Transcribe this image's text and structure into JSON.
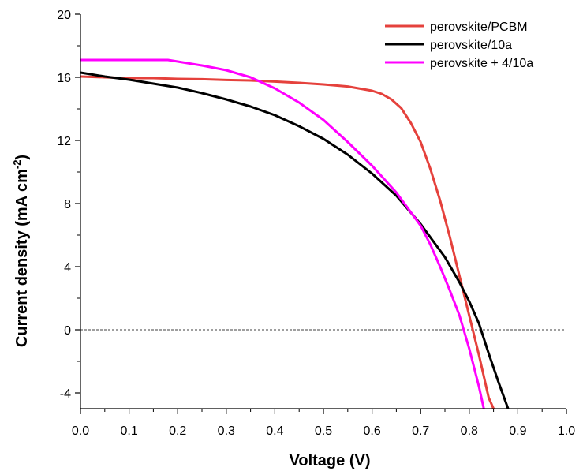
{
  "chart_data": {
    "type": "line",
    "title": "",
    "xlabel": "Voltage (V)",
    "ylabel": {
      "main": "Current density (mA cm",
      "sup": "-2",
      "end": ")"
    },
    "xlim": [
      0.0,
      1.0
    ],
    "ylim": [
      -5,
      20
    ],
    "xticks": [
      "0.0",
      "0.1",
      "0.2",
      "0.3",
      "0.4",
      "0.5",
      "0.6",
      "0.7",
      "0.8",
      "0.9",
      "1.0"
    ],
    "yticks": [
      "-4",
      "0",
      "4",
      "8",
      "12",
      "16",
      "20"
    ],
    "zero_line": {
      "y": 0,
      "style": "dashed"
    },
    "legend_position": "top-right",
    "series": [
      {
        "name": "perovskite/PCBM",
        "color": "#e5413c",
        "points": [
          [
            0.0,
            16.05
          ],
          [
            0.05,
            16.0
          ],
          [
            0.1,
            15.95
          ],
          [
            0.15,
            15.95
          ],
          [
            0.2,
            15.9
          ],
          [
            0.25,
            15.88
          ],
          [
            0.3,
            15.83
          ],
          [
            0.35,
            15.8
          ],
          [
            0.4,
            15.73
          ],
          [
            0.45,
            15.65
          ],
          [
            0.5,
            15.55
          ],
          [
            0.55,
            15.42
          ],
          [
            0.6,
            15.15
          ],
          [
            0.62,
            14.95
          ],
          [
            0.64,
            14.6
          ],
          [
            0.66,
            14.05
          ],
          [
            0.68,
            13.1
          ],
          [
            0.7,
            11.9
          ],
          [
            0.72,
            10.2
          ],
          [
            0.74,
            8.2
          ],
          [
            0.76,
            5.9
          ],
          [
            0.78,
            3.4
          ],
          [
            0.8,
            0.9
          ],
          [
            0.82,
            -1.6
          ],
          [
            0.84,
            -4.3
          ],
          [
            0.85,
            -5.0
          ]
        ]
      },
      {
        "name": "perovskite/10a",
        "color": "#000000",
        "points": [
          [
            0.0,
            16.3
          ],
          [
            0.05,
            16.05
          ],
          [
            0.1,
            15.85
          ],
          [
            0.15,
            15.6
          ],
          [
            0.2,
            15.35
          ],
          [
            0.25,
            15.0
          ],
          [
            0.3,
            14.6
          ],
          [
            0.35,
            14.15
          ],
          [
            0.4,
            13.6
          ],
          [
            0.45,
            12.9
          ],
          [
            0.5,
            12.1
          ],
          [
            0.55,
            11.1
          ],
          [
            0.6,
            9.9
          ],
          [
            0.65,
            8.5
          ],
          [
            0.7,
            6.7
          ],
          [
            0.75,
            4.6
          ],
          [
            0.78,
            3.0
          ],
          [
            0.8,
            1.8
          ],
          [
            0.82,
            0.4
          ],
          [
            0.84,
            -1.5
          ],
          [
            0.86,
            -3.3
          ],
          [
            0.88,
            -5.0
          ]
        ]
      },
      {
        "name": "perovskite + 4/10a",
        "color": "#ff00ff",
        "points": [
          [
            0.0,
            17.1
          ],
          [
            0.05,
            17.1
          ],
          [
            0.1,
            17.1
          ],
          [
            0.15,
            17.1
          ],
          [
            0.18,
            17.1
          ],
          [
            0.2,
            17.0
          ],
          [
            0.25,
            16.75
          ],
          [
            0.3,
            16.45
          ],
          [
            0.35,
            16.0
          ],
          [
            0.4,
            15.3
          ],
          [
            0.45,
            14.4
          ],
          [
            0.5,
            13.3
          ],
          [
            0.55,
            11.9
          ],
          [
            0.6,
            10.4
          ],
          [
            0.65,
            8.7
          ],
          [
            0.7,
            6.6
          ],
          [
            0.72,
            5.4
          ],
          [
            0.74,
            4.0
          ],
          [
            0.76,
            2.5
          ],
          [
            0.78,
            0.9
          ],
          [
            0.8,
            -1.2
          ],
          [
            0.82,
            -3.6
          ],
          [
            0.83,
            -5.0
          ]
        ]
      }
    ]
  }
}
